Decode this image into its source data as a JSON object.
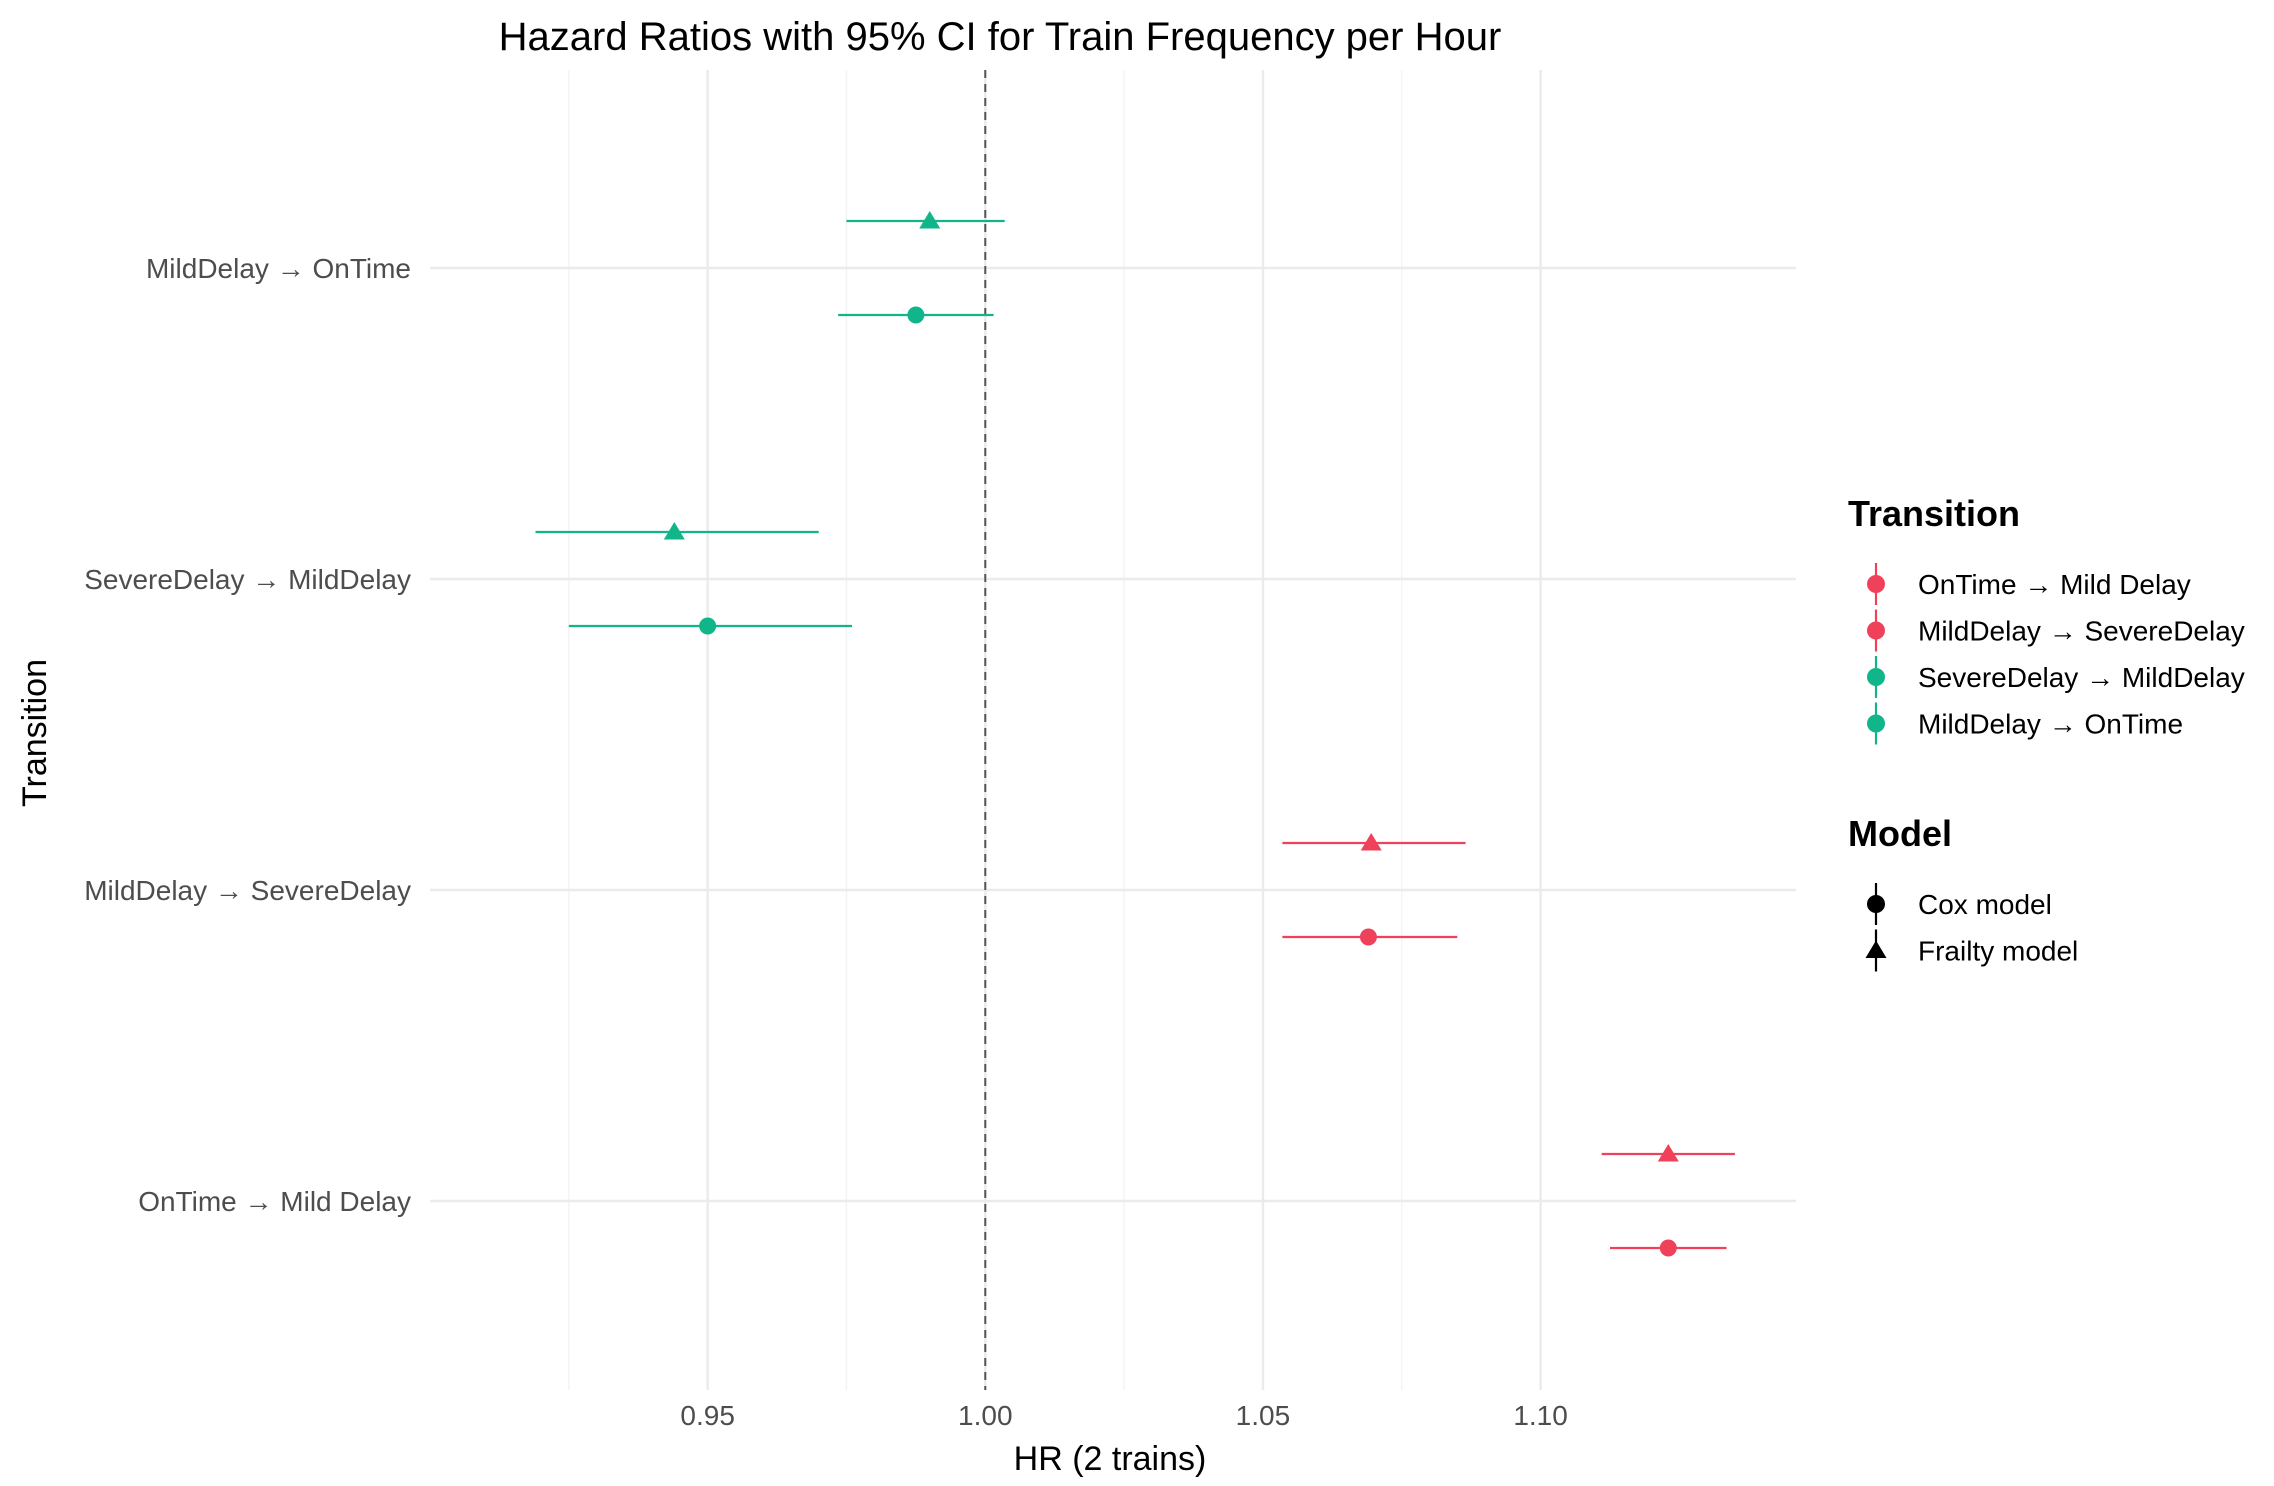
{
  "chart_data": {
    "type": "forest",
    "title": "Hazard Ratios with 95% CI for Train Frequency per Hour",
    "xlabel": "HR (2 trains)",
    "ylabel": "Transition",
    "xlim": [
      0.9,
      1.146
    ],
    "x_ticks": [
      0.95,
      1.0,
      1.05,
      1.1
    ],
    "x_tick_labels": [
      "0.95",
      "1.00",
      "1.05",
      "1.10"
    ],
    "reference_line": 1.0,
    "grid": true,
    "categories": [
      "MildDelay → OnTime",
      "SevereDelay → MildDelay",
      "MildDelay → SevereDelay",
      "OnTime → Mild Delay"
    ],
    "series": [
      {
        "name": "Frailty model",
        "marker": "triangle",
        "points": [
          {
            "transition": "MildDelay → OnTime",
            "hr": 0.99,
            "lower": 0.975,
            "upper": 1.0035
          },
          {
            "transition": "SevereDelay → MildDelay",
            "hr": 0.944,
            "lower": 0.919,
            "upper": 0.97
          },
          {
            "transition": "MildDelay → SevereDelay",
            "hr": 1.0695,
            "lower": 1.0535,
            "upper": 1.0865
          },
          {
            "transition": "OnTime → Mild Delay",
            "hr": 1.123,
            "lower": 1.111,
            "upper": 1.135
          }
        ]
      },
      {
        "name": "Cox model",
        "marker": "circle",
        "points": [
          {
            "transition": "MildDelay → OnTime",
            "hr": 0.9875,
            "lower": 0.9735,
            "upper": 1.0015
          },
          {
            "transition": "SevereDelay → MildDelay",
            "hr": 0.95,
            "lower": 0.925,
            "upper": 0.976
          },
          {
            "transition": "MildDelay → SevereDelay",
            "hr": 1.069,
            "lower": 1.0535,
            "upper": 1.085
          },
          {
            "transition": "OnTime → Mild Delay",
            "hr": 1.123,
            "lower": 1.1125,
            "upper": 1.1335
          }
        ]
      }
    ],
    "legend": {
      "placement": "right",
      "transition": {
        "title": "Transition",
        "items": [
          {
            "label": "OnTime → Mild Delay",
            "color": "#f0415b"
          },
          {
            "label": "MildDelay → SevereDelay",
            "color": "#f0415b"
          },
          {
            "label": "SevereDelay → MildDelay",
            "color": "#10b68a"
          },
          {
            "label": "MildDelay → OnTime",
            "color": "#10b68a"
          }
        ]
      },
      "model": {
        "title": "Model",
        "items": [
          {
            "label": "Cox model",
            "marker": "circle"
          },
          {
            "label": "Frailty model",
            "marker": "triangle"
          }
        ]
      }
    },
    "colors": {
      "OnTime → Mild Delay": "#f0415b",
      "MildDelay → SevereDelay": "#f0415b",
      "SevereDelay → MildDelay": "#10b68a",
      "MildDelay → OnTime": "#10b68a"
    }
  }
}
